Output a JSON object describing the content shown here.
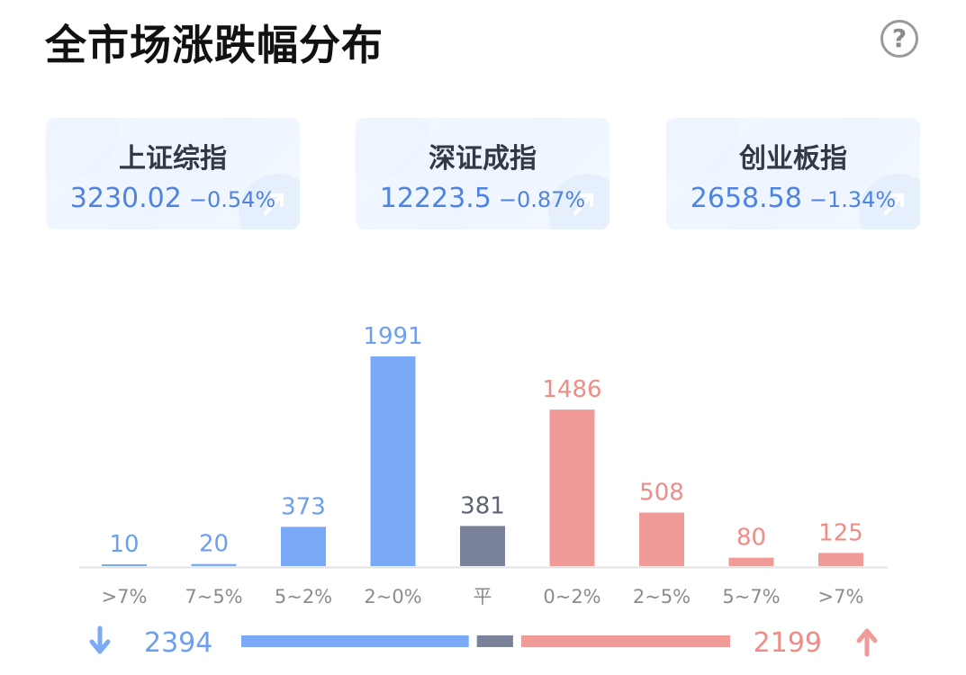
{
  "header": {
    "title": "全市场涨跌幅分布",
    "help_icon": "help-circle-icon",
    "help_glyph": "?"
  },
  "indices": [
    {
      "name": "上证综指",
      "value": "3230.02",
      "change": "−0.54%"
    },
    {
      "name": "深证成指",
      "value": "12223.5",
      "change": "−0.87%"
    },
    {
      "name": "创业板指",
      "value": "2658.58",
      "change": "−1.34%"
    }
  ],
  "colors": {
    "down": "#7aaaf7",
    "flat": "#7a8299",
    "up": "#f09b98",
    "down_text": "#6d9ff0",
    "up_text": "#ee8c88",
    "flat_text": "#5d6575"
  },
  "chart_data": {
    "type": "bar",
    "categories": [
      ">7%",
      "7~5%",
      "5~2%",
      "2~0%",
      "平",
      "0~2%",
      "2~5%",
      "5~7%",
      ">7%"
    ],
    "values": [
      10,
      20,
      373,
      1991,
      381,
      1486,
      508,
      80,
      125
    ],
    "groups": [
      "down",
      "down",
      "down",
      "down",
      "flat",
      "up",
      "up",
      "up",
      "up"
    ],
    "ylim": [
      0,
      1991
    ],
    "summary": {
      "down_total": 2394,
      "flat_total": 381,
      "up_total": 2199
    }
  }
}
